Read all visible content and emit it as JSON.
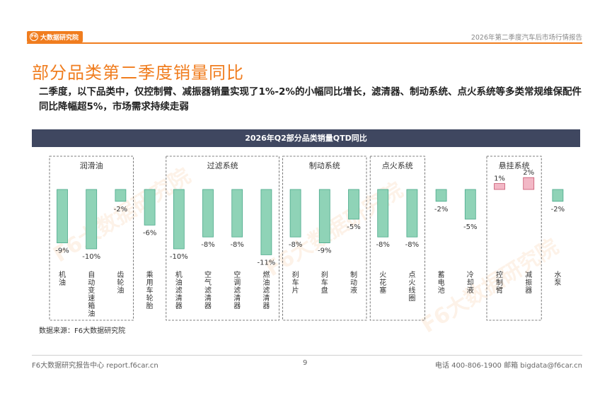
{
  "header": {
    "logo_text": "大数据研究院",
    "report_name": "2026年第二季度汽车后市场行情报告"
  },
  "page_title": "部分品类第二季度销量同比",
  "summary": "二季度，以下品类中，仅控制臂、减振器销量实现了1%-2%的小幅同比增长，滤清器、制动系统、点火系统等多类常规维保配件同比降幅超5%，市场需求持续走弱",
  "source": "数据来源：F6大数据研究院",
  "footer": {
    "left": "F6大数据研究报告中心 report.f6car.cn",
    "page": "9",
    "right": "电话 400-806-1900  邮箱 bigdata@f6car.cn"
  },
  "colors": {
    "accent": "#f07d1f",
    "title_bar": "#3f4760",
    "negative_bar": "#8fd3b7",
    "positive_bar": "#f2b8c6"
  },
  "chart_data": {
    "type": "bar",
    "title": "2026年Q2部分品类销量QTD同比",
    "categories": [
      "机油",
      "自动变速箱油",
      "齿轮油",
      "乘用车轮胎",
      "机油滤清器",
      "空气滤清器",
      "空调滤清器",
      "燃油滤清器",
      "刹车片",
      "刹车盘",
      "制动液",
      "火花塞",
      "点火线圈",
      "蓄电池",
      "冷却液",
      "控制臂",
      "减振器",
      "水泵"
    ],
    "values": [
      -9,
      -10,
      -2,
      -6,
      -10,
      -8,
      -8,
      -11,
      -8,
      -9,
      -5,
      -8,
      -8,
      -2,
      -5,
      1,
      2,
      -2
    ],
    "value_labels": [
      "-9%",
      "-10%",
      "-2%",
      "-6%",
      "-10%",
      "-8%",
      "-8%",
      "-11%",
      "-8%",
      "-9%",
      "-5%",
      "-8%",
      "-8%",
      "-2%",
      "-5%",
      "1%",
      "2%",
      "-2%"
    ],
    "groups": [
      {
        "name": "润滑油",
        "start": 0,
        "end": 2
      },
      {
        "name": "过滤系统",
        "start": 4,
        "end": 7
      },
      {
        "name": "制动系统",
        "start": 8,
        "end": 10
      },
      {
        "name": "点火系统",
        "start": 11,
        "end": 12
      },
      {
        "name": "悬挂系统",
        "start": 15,
        "end": 16
      }
    ],
    "unit": "%"
  }
}
